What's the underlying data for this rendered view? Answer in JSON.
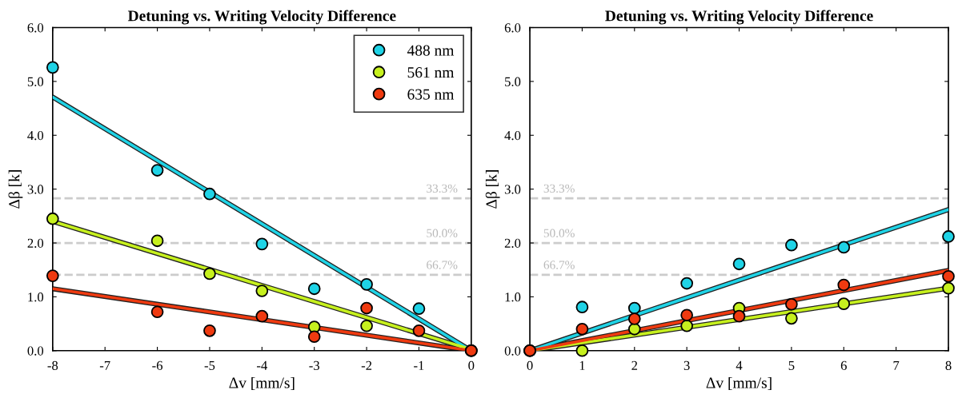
{
  "chart_data": [
    {
      "type": "scatter",
      "title": "Detuning vs. Writing Velocity Difference",
      "xlabel": "Δv [mm/s]",
      "ylabel": "Δβ [k]",
      "xlim": [
        -8,
        0
      ],
      "xticks": [
        -8,
        -7,
        -6,
        -5,
        -4,
        -3,
        -2,
        -1,
        0
      ],
      "ylim": [
        0,
        6
      ],
      "yticks": [
        {
          "value": 0,
          "label": "0.0"
        },
        {
          "value": 1,
          "label": "1.0"
        },
        {
          "value": 2,
          "label": "2.0"
        },
        {
          "value": 3,
          "label": "3.0"
        },
        {
          "value": 4,
          "label": "4.0"
        },
        {
          "value": 5,
          "label": "5.0"
        },
        {
          "value": 6,
          "label": "6.0"
        }
      ],
      "grid": false,
      "legend": "top right",
      "marker": "circle",
      "series": [
        {
          "type": "line",
          "marker": "none",
          "color": "#1fd3e6",
          "x": [
            -8,
            0
          ],
          "values": [
            4.71,
            0
          ]
        },
        {
          "type": "line",
          "marker": "none",
          "color": "#c6f01e",
          "x": [
            -8,
            0
          ],
          "values": [
            2.4,
            0.02
          ]
        },
        {
          "type": "line",
          "marker": "none",
          "color": "#ef3a10",
          "x": [
            -8,
            0
          ],
          "values": [
            1.15,
            0
          ]
        },
        {
          "name": "488 nm",
          "color": "#1fd3e6",
          "x": [
            -8,
            -6,
            -5,
            -4,
            -3,
            -2,
            -1,
            0
          ],
          "values": [
            5.26,
            3.35,
            2.91,
            1.98,
            1.15,
            1.23,
            0.78,
            0
          ]
        },
        {
          "name": "561 nm",
          "color": "#c6f01e",
          "x": [
            -8,
            -6,
            -5,
            -4,
            -3,
            -2,
            0
          ],
          "values": [
            2.45,
            2.04,
            1.43,
            1.11,
            0.44,
            0.46,
            0
          ]
        },
        {
          "name": "635 nm",
          "color": "#ef3a10",
          "x": [
            -8,
            -6,
            -5,
            -4,
            -3,
            -2,
            -1,
            0
          ],
          "values": [
            1.39,
            0.72,
            0.37,
            0.64,
            0.26,
            0.79,
            0.37,
            0
          ]
        }
      ],
      "ref_lines": [
        {
          "axis": "y",
          "value": 2.83,
          "color": "#cccccc",
          "line_style": "dashed"
        },
        {
          "axis": "y",
          "value": 2.0,
          "color": "#cccccc",
          "line_style": "dashed"
        },
        {
          "axis": "y",
          "value": 1.41,
          "color": "#cccccc",
          "line_style": "dashed"
        }
      ],
      "annotations": [
        {
          "text": "33.3%",
          "y": 2.83
        },
        {
          "text": "50.0%",
          "y": 2.0
        },
        {
          "text": "66.7%",
          "y": 1.41
        }
      ]
    },
    {
      "type": "scatter",
      "title": "Detuning vs. Writing Velocity Difference",
      "xlabel": "Δv [mm/s]",
      "ylabel": "Δβ [k]",
      "xlim": [
        0,
        8
      ],
      "xticks": [
        0,
        1,
        2,
        3,
        4,
        5,
        6,
        7,
        8
      ],
      "ylim": [
        0,
        6
      ],
      "yticks": [
        {
          "value": 0,
          "label": "0.0"
        },
        {
          "value": 1,
          "label": "1.0"
        },
        {
          "value": 2,
          "label": "2.0"
        },
        {
          "value": 3,
          "label": "3.0"
        },
        {
          "value": 4,
          "label": "4.0"
        },
        {
          "value": 5,
          "label": "5.0"
        },
        {
          "value": 6,
          "label": "6.0"
        }
      ],
      "grid": false,
      "marker": "circle",
      "series": [
        {
          "type": "line",
          "marker": "none",
          "color": "#1fd3e6",
          "x": [
            0,
            8
          ],
          "values": [
            0,
            2.62
          ]
        },
        {
          "type": "line",
          "marker": "none",
          "color": "#c6f01e",
          "x": [
            0,
            8
          ],
          "values": [
            0,
            1.16
          ]
        },
        {
          "type": "line",
          "marker": "none",
          "color": "#ef3a10",
          "x": [
            0,
            8
          ],
          "values": [
            0,
            1.49
          ]
        },
        {
          "color": "#1fd3e6",
          "x": [
            0,
            1,
            2,
            3,
            4,
            5,
            6,
            8
          ],
          "values": [
            0,
            0.81,
            0.79,
            1.25,
            1.61,
            1.96,
            1.92,
            2.12
          ]
        },
        {
          "color": "#c6f01e",
          "x": [
            0,
            1,
            2,
            3,
            4,
            5,
            6,
            8
          ],
          "values": [
            0,
            0,
            0.4,
            0.46,
            0.79,
            0.6,
            0.87,
            1.16
          ]
        },
        {
          "color": "#ef3a10",
          "x": [
            0,
            1,
            2,
            3,
            4,
            5,
            6,
            8
          ],
          "values": [
            0,
            0.4,
            0.59,
            0.66,
            0.64,
            0.86,
            1.22,
            1.38
          ]
        }
      ],
      "ref_lines": [
        {
          "axis": "y",
          "value": 2.83,
          "color": "#cccccc",
          "line_style": "dashed"
        },
        {
          "axis": "y",
          "value": 2.0,
          "color": "#cccccc",
          "line_style": "dashed"
        },
        {
          "axis": "y",
          "value": 1.41,
          "color": "#cccccc",
          "line_style": "dashed"
        }
      ],
      "annotations": [
        {
          "text": "33.3%",
          "y": 2.83
        },
        {
          "text": "50.0%",
          "y": 2.0
        },
        {
          "text": "66.7%",
          "y": 1.41
        }
      ]
    }
  ]
}
